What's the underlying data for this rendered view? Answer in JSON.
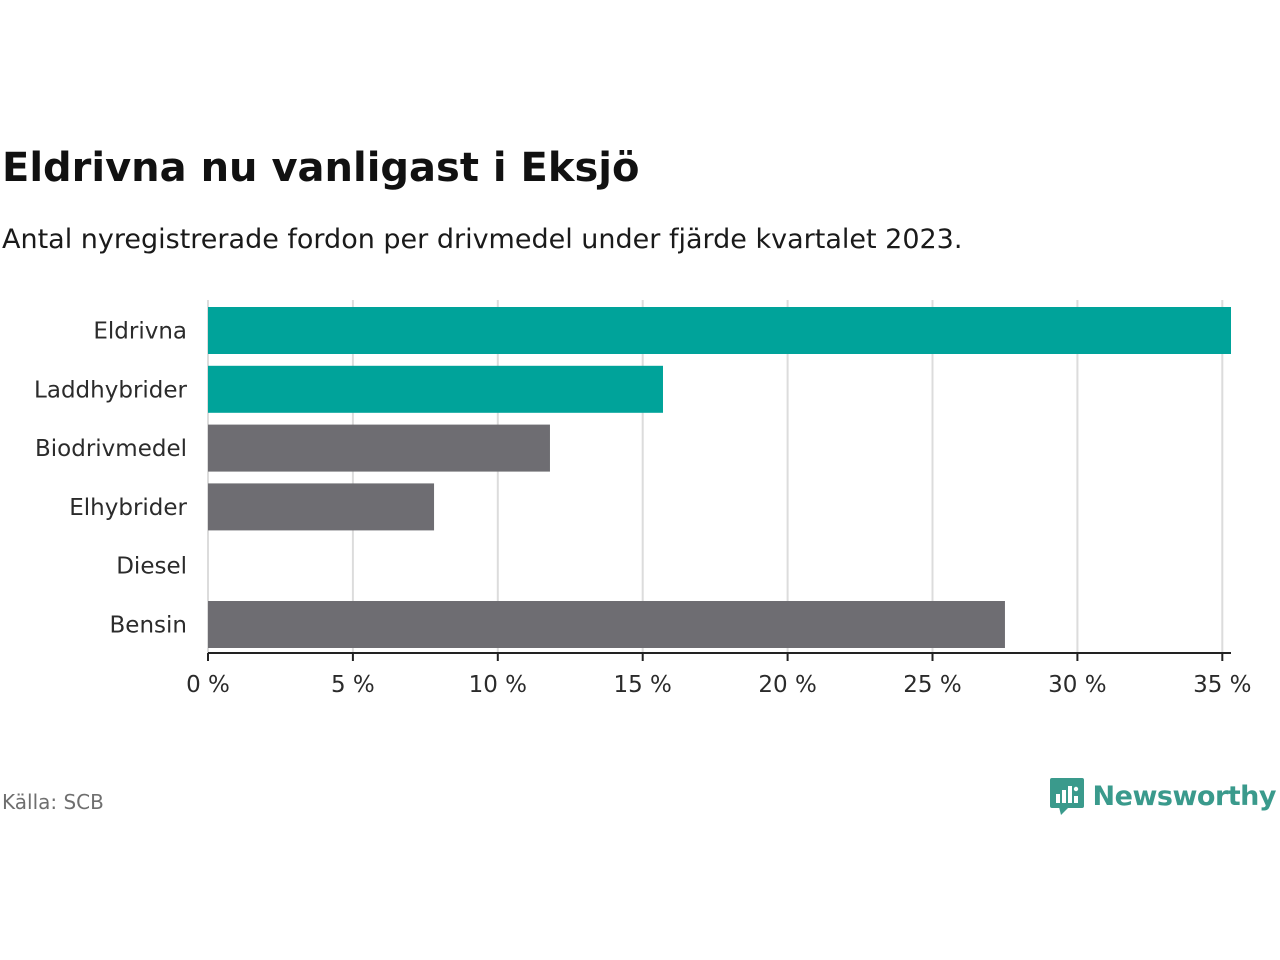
{
  "header": {
    "title": "Eldrivna nu vanligast i Eksjö",
    "subtitle": "Antal nyregistrerade fordon per drivmedel under fjärde kvartalet 2023."
  },
  "footer": {
    "source": "Källa: SCB",
    "brand": "Newsworthy",
    "logo_icon": "newsworthy-logo-icon",
    "brand_color": "#3a9a8c"
  },
  "chart_data": {
    "type": "bar",
    "orientation": "horizontal",
    "title": "Eldrivna nu vanligast i Eksjö",
    "subtitle": "Antal nyregistrerade fordon per drivmedel under fjärde kvartalet 2023.",
    "xlabel": "",
    "ylabel": "",
    "unit": "%",
    "categories": [
      "Eldrivna",
      "Laddhybrider",
      "Biodrivmedel",
      "Elhybrider",
      "Diesel",
      "Bensin"
    ],
    "values": [
      35.3,
      15.7,
      11.8,
      7.8,
      0,
      27.5
    ],
    "colors": [
      "#00a39a",
      "#00a39a",
      "#6e6d72",
      "#6e6d72",
      "#6e6d72",
      "#6e6d72"
    ],
    "xlim": [
      0,
      35.3
    ],
    "ticks": [
      0,
      5,
      10,
      15,
      20,
      25,
      30,
      35
    ],
    "tick_labels": [
      "0 %",
      "5 %",
      "10 %",
      "15 %",
      "20 %",
      "25 %",
      "30 %",
      "35 %"
    ],
    "grid": true,
    "legend": "none"
  }
}
